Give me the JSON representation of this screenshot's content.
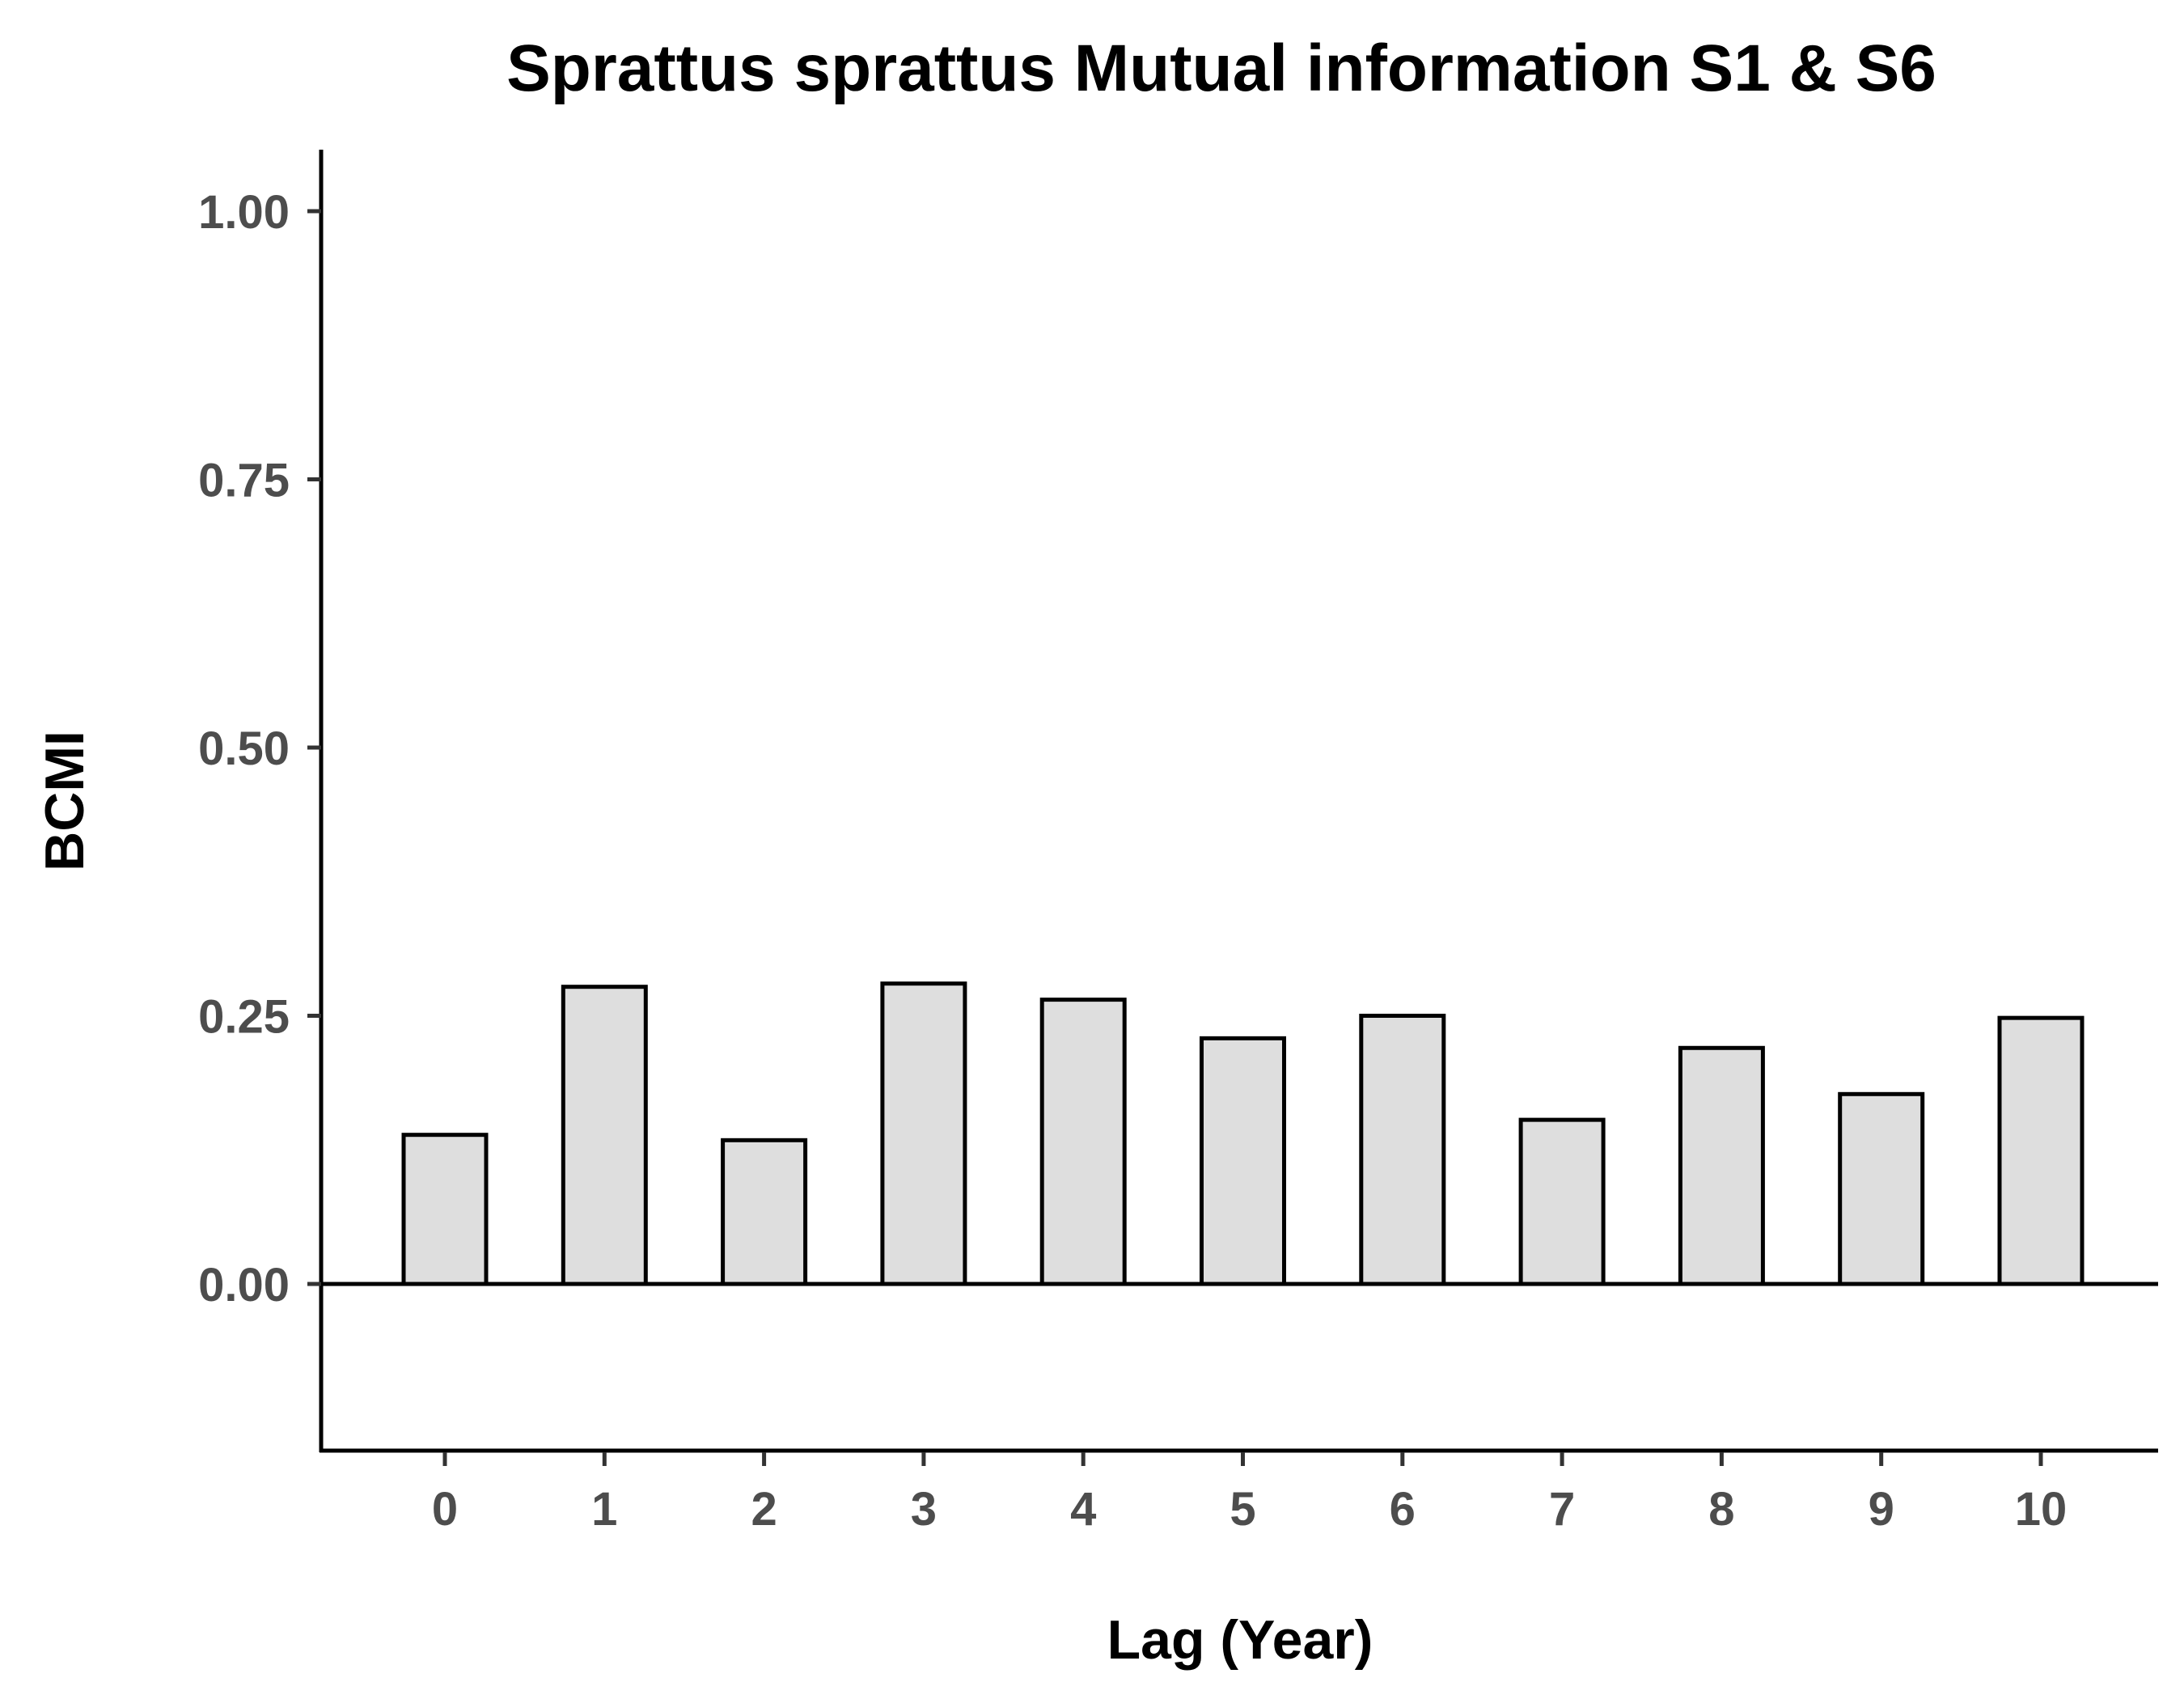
{
  "chart_data": {
    "type": "bar",
    "title": "Sprattus sprattus Mutual information S1 & S6",
    "xlabel": "Lag (Year)",
    "ylabel": "BCMI",
    "categories": [
      "0",
      "1",
      "2",
      "3",
      "4",
      "5",
      "6",
      "7",
      "8",
      "9",
      "10"
    ],
    "values": [
      0.139,
      0.277,
      0.134,
      0.28,
      0.265,
      0.229,
      0.25,
      0.153,
      0.22,
      0.177,
      0.248
    ],
    "ylim": [
      -0.15,
      1.05
    ],
    "yticks": [
      {
        "value": 0,
        "label": "0.00"
      },
      {
        "value": 0.25,
        "label": "0.25"
      },
      {
        "value": 0.5,
        "label": "0.50"
      },
      {
        "value": 0.75,
        "label": "0.75"
      },
      {
        "value": 1,
        "label": "1.00"
      }
    ],
    "grid": false,
    "reference_line": 0,
    "bar_fill": "#dedede",
    "bar_edge": "#000000"
  }
}
